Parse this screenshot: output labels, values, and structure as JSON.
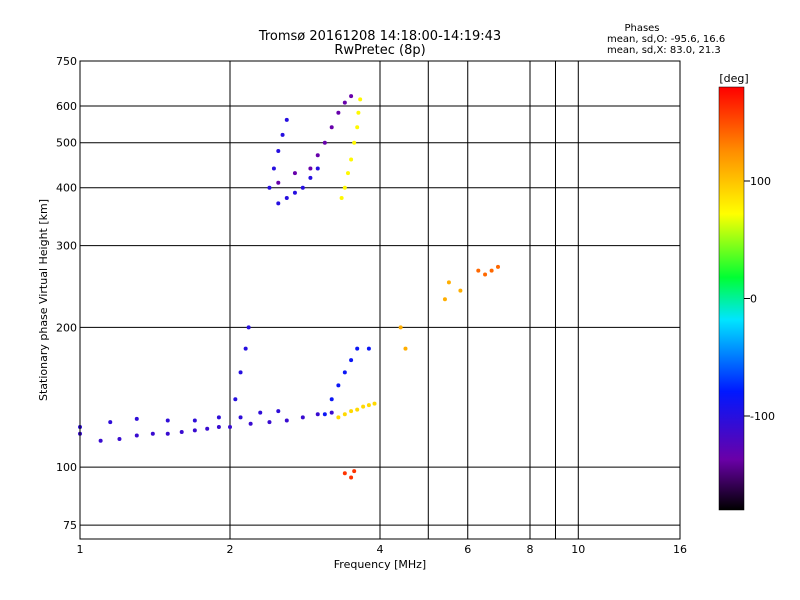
{
  "chart_data": {
    "type": "scatter",
    "title": "Tromsø 20161208 14:18:00-14:19:43",
    "subtitle": "RwPretec (8p)",
    "xlabel": "Frequency [MHz]",
    "ylabel": "Stationary phase Virtual Height [km]",
    "xscale": "log",
    "yscale": "log",
    "xlim": [
      1,
      16
    ],
    "ylim": [
      70,
      750
    ],
    "x_ticks": [
      1,
      2,
      4,
      6,
      8,
      10,
      16
    ],
    "x_grid": [
      1,
      2,
      4,
      5,
      6,
      8,
      9,
      10,
      16
    ],
    "y_ticks": [
      75,
      100,
      200,
      300,
      400,
      500,
      600,
      750
    ],
    "grid": true,
    "stats": {
      "heading": "Phases",
      "line_o": "mean, sd,O: -95.6, 16.6",
      "line_x": "mean, sd,X: 83.0, 21.3"
    },
    "colorbar": {
      "label": "[deg]",
      "range": [
        -180,
        180
      ],
      "ticks": [
        100,
        0,
        -100
      ],
      "scale": "rainbow: black-purple-blue-cyan-green-yellow-orange-red"
    },
    "clusters": [
      {
        "name": "o-trace-low",
        "phase": -110,
        "points": [
          [
            1.0,
            118
          ],
          [
            1.1,
            114
          ],
          [
            1.2,
            115
          ],
          [
            1.3,
            117
          ],
          [
            1.4,
            118
          ],
          [
            1.5,
            118
          ],
          [
            1.6,
            119
          ],
          [
            1.7,
            120
          ],
          [
            1.8,
            121
          ],
          [
            1.9,
            122
          ],
          [
            2.0,
            122
          ],
          [
            2.2,
            124
          ],
          [
            2.4,
            125
          ],
          [
            2.6,
            126
          ],
          [
            2.8,
            128
          ],
          [
            3.0,
            130
          ],
          [
            3.2,
            131
          ]
        ]
      },
      {
        "name": "o-trace-low-upper",
        "phase": -105,
        "points": [
          [
            1.0,
            122
          ],
          [
            1.15,
            125
          ],
          [
            1.3,
            127
          ],
          [
            1.5,
            126
          ],
          [
            1.7,
            126
          ],
          [
            1.9,
            128
          ],
          [
            2.1,
            128
          ],
          [
            2.3,
            131
          ],
          [
            2.5,
            132
          ]
        ]
      },
      {
        "name": "o-rise-2mhz",
        "phase": -100,
        "points": [
          [
            2.05,
            140
          ],
          [
            2.1,
            160
          ],
          [
            2.15,
            180
          ],
          [
            2.18,
            200
          ]
        ]
      },
      {
        "name": "o-rise-3mhz",
        "phase": -85,
        "points": [
          [
            3.1,
            130
          ],
          [
            3.2,
            140
          ],
          [
            3.3,
            150
          ],
          [
            3.4,
            160
          ],
          [
            3.5,
            170
          ],
          [
            3.6,
            180
          ],
          [
            3.8,
            180
          ]
        ]
      },
      {
        "name": "x-trace-low",
        "phase": 90,
        "points": [
          [
            3.3,
            128
          ],
          [
            3.4,
            130
          ],
          [
            3.5,
            132
          ],
          [
            3.6,
            133
          ],
          [
            3.7,
            135
          ],
          [
            3.8,
            136
          ],
          [
            3.9,
            137
          ]
        ]
      },
      {
        "name": "red-low-cluster",
        "phase": 160,
        "points": [
          [
            3.4,
            97
          ],
          [
            3.5,
            95
          ],
          [
            3.55,
            98
          ]
        ]
      },
      {
        "name": "o-trace-f-blue",
        "phase": -100,
        "points": [
          [
            2.4,
            400
          ],
          [
            2.45,
            440
          ],
          [
            2.5,
            480
          ],
          [
            2.55,
            520
          ],
          [
            2.6,
            560
          ],
          [
            2.5,
            370
          ],
          [
            2.6,
            380
          ],
          [
            2.7,
            390
          ],
          [
            2.8,
            400
          ],
          [
            2.9,
            420
          ],
          [
            3.0,
            440
          ]
        ]
      },
      {
        "name": "o-trace-f-purple",
        "phase": -135,
        "points": [
          [
            2.5,
            410
          ],
          [
            2.7,
            430
          ],
          [
            2.9,
            440
          ],
          [
            3.0,
            470
          ],
          [
            3.1,
            500
          ],
          [
            3.2,
            540
          ],
          [
            3.3,
            580
          ],
          [
            3.4,
            610
          ],
          [
            3.5,
            630
          ]
        ]
      },
      {
        "name": "x-trace-f-yellow",
        "phase": 75,
        "points": [
          [
            3.35,
            380
          ],
          [
            3.4,
            400
          ],
          [
            3.45,
            430
          ],
          [
            3.5,
            460
          ],
          [
            3.55,
            500
          ],
          [
            3.6,
            540
          ],
          [
            3.62,
            580
          ],
          [
            3.65,
            620
          ]
        ]
      },
      {
        "name": "scatter-4-6mhz",
        "phase": 110,
        "points": [
          [
            4.4,
            200
          ],
          [
            4.5,
            180
          ],
          [
            5.4,
            230
          ],
          [
            5.5,
            250
          ],
          [
            5.8,
            240
          ]
        ]
      },
      {
        "name": "scatter-6-7mhz",
        "phase": 140,
        "points": [
          [
            6.3,
            265
          ],
          [
            6.5,
            260
          ],
          [
            6.7,
            265
          ],
          [
            6.9,
            270
          ]
        ]
      }
    ]
  }
}
